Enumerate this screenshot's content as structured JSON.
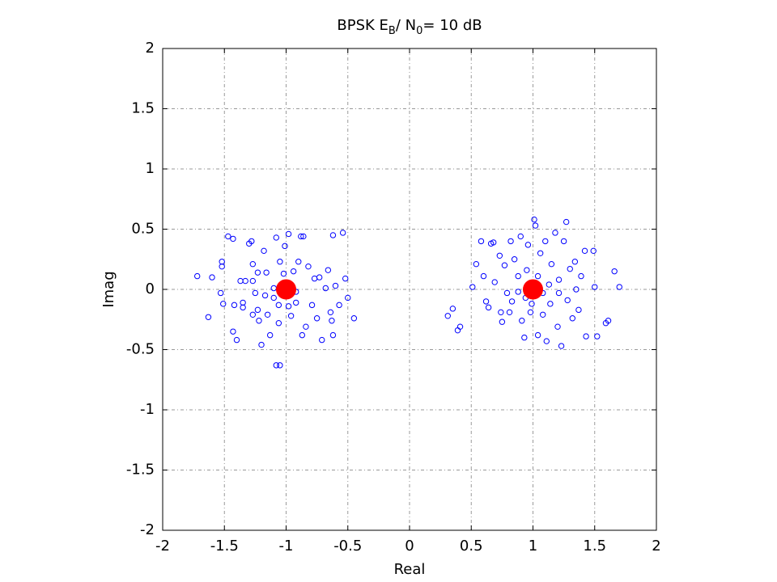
{
  "chart_data": {
    "type": "scatter",
    "title": [
      "BPSK E",
      "B",
      "/ N",
      "0",
      "= 10 dB"
    ],
    "x_label": "Real",
    "y_label": "Imag",
    "xlim": [
      -2,
      2
    ],
    "ylim": [
      -2,
      2
    ],
    "xticks": [
      -2,
      -1.5,
      -1,
      -0.5,
      0,
      0.5,
      1,
      1.5,
      2
    ],
    "yticks": [
      -2,
      -1.5,
      -1,
      -0.5,
      0,
      0.5,
      1,
      1.5,
      2
    ],
    "grid": true,
    "series": [
      {
        "color": "#0000ff",
        "marker": "open",
        "x": [
          -1.72,
          -1.63,
          -1.47,
          -1.43,
          -1.52,
          -1.52,
          -1.6,
          -1.53,
          -1.51,
          -1.42,
          -1.43,
          -1.4,
          -1.37,
          -1.35,
          -1.35,
          -1.33,
          -1.3,
          -1.28,
          -1.27,
          -1.27,
          -1.25,
          -1.23,
          -1.22,
          -1.2,
          -1.18,
          -1.16,
          -1.15,
          -1.13,
          -1.1,
          -1.08,
          -1.08,
          -1.05,
          -1.06,
          -1.05,
          -1.01,
          -0.98,
          -0.96,
          -0.94,
          -0.92,
          -0.9,
          -0.88,
          -0.86,
          -0.87,
          -0.84,
          -0.82,
          -0.79,
          -0.77,
          -0.75,
          -0.73,
          -0.71,
          -0.68,
          -0.66,
          -0.64,
          -0.63,
          -0.62,
          -0.6,
          -0.57,
          -0.54,
          -0.62,
          -0.52,
          -0.5,
          -0.45,
          -1.06,
          -0.98,
          -1.1,
          -0.92,
          -1.17,
          -1.02,
          -1.23,
          -1.27,
          0.31,
          0.35,
          0.39,
          0.41,
          0.51,
          0.58,
          0.54,
          0.66,
          0.68,
          0.6,
          0.62,
          0.64,
          0.69,
          0.73,
          0.74,
          0.75,
          0.77,
          0.79,
          0.82,
          0.83,
          0.85,
          0.88,
          0.9,
          0.91,
          0.93,
          0.95,
          0.96,
          0.99,
          1.01,
          1.02,
          1.04,
          1.06,
          1.08,
          1.1,
          1.11,
          1.13,
          1.15,
          1.18,
          1.2,
          1.21,
          1.23,
          1.25,
          1.27,
          1.28,
          1.3,
          1.32,
          1.34,
          1.35,
          1.37,
          1.39,
          1.42,
          1.43,
          1.49,
          1.5,
          1.52,
          1.59,
          1.61,
          1.66,
          1.7,
          0.94,
          1.08,
          0.88,
          1.04,
          1.14,
          0.81,
          1.21,
          0.98
        ],
        "values": [
          0.11,
          -0.23,
          0.44,
          0.42,
          0.23,
          0.19,
          0.1,
          -0.03,
          -0.12,
          -0.13,
          -0.35,
          -0.42,
          0.07,
          -0.11,
          -0.15,
          0.07,
          0.38,
          0.4,
          0.21,
          0.07,
          -0.03,
          -0.17,
          -0.26,
          -0.46,
          0.32,
          0.14,
          -0.21,
          -0.38,
          0.01,
          0.43,
          -0.63,
          -0.63,
          -0.28,
          0.23,
          0.36,
          0.46,
          -0.22,
          0.15,
          -0.11,
          0.23,
          0.44,
          0.44,
          -0.38,
          -0.31,
          0.19,
          -0.13,
          0.09,
          -0.24,
          0.1,
          -0.42,
          0.01,
          0.16,
          -0.19,
          -0.26,
          -0.38,
          0.03,
          -0.13,
          0.47,
          0.45,
          0.09,
          -0.07,
          -0.24,
          -0.13,
          -0.14,
          -0.07,
          -0.02,
          -0.05,
          0.13,
          0.14,
          -0.21,
          -0.22,
          -0.16,
          -0.34,
          -0.31,
          0.02,
          0.4,
          0.21,
          0.38,
          0.39,
          0.11,
          -0.1,
          -0.15,
          0.06,
          0.28,
          -0.19,
          -0.27,
          0.2,
          -0.03,
          0.4,
          -0.1,
          0.25,
          0.11,
          0.44,
          -0.26,
          -0.4,
          0.16,
          0.37,
          -0.12,
          0.58,
          0.53,
          -0.38,
          0.3,
          -0.21,
          0.4,
          -0.43,
          0.04,
          0.21,
          0.47,
          -0.31,
          0.08,
          -0.47,
          0.4,
          0.56,
          -0.09,
          0.17,
          -0.24,
          0.23,
          0,
          -0.17,
          0.11,
          0.32,
          -0.39,
          0.32,
          0.02,
          -0.39,
          -0.28,
          -0.26,
          0.15,
          0.02,
          -0.07,
          -0.03,
          -0.02,
          0.11,
          -0.12,
          -0.19,
          -0.03,
          -0.19
        ]
      },
      {
        "color": "#ff0000",
        "marker": "filled",
        "x": [
          -1,
          1
        ],
        "values": [
          0,
          0
        ]
      }
    ]
  }
}
